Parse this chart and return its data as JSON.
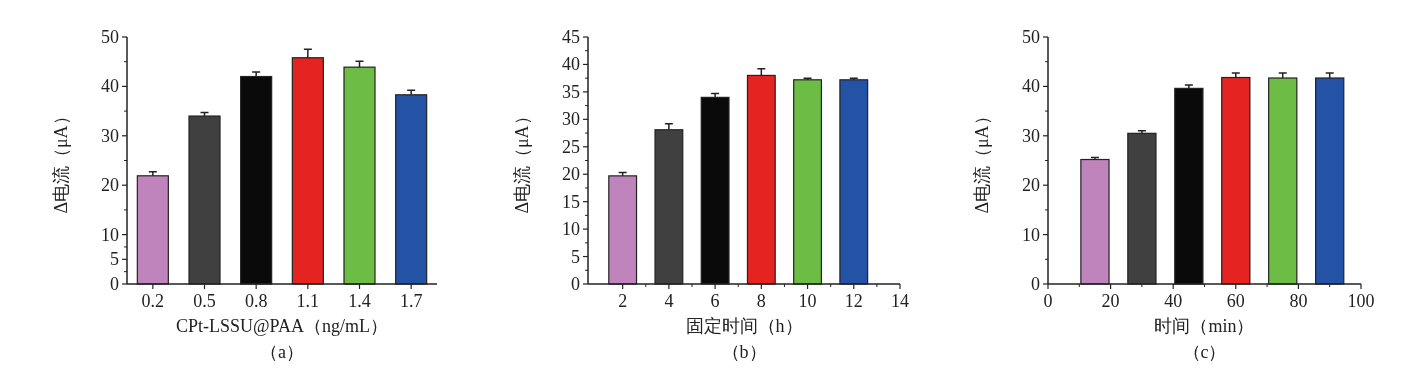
{
  "chart_data": [
    {
      "type": "bar",
      "categories": [
        "0.2",
        "0.5",
        "0.8",
        "1.1",
        "1.4",
        "1.7"
      ],
      "values": [
        21.9,
        34.0,
        42.0,
        45.8,
        43.9,
        38.3
      ],
      "errors": [
        0.8,
        0.7,
        0.9,
        1.7,
        1.2,
        0.9
      ],
      "colors": [
        "#c084bc",
        "#404040",
        "#0a0a0a",
        "#e52421",
        "#6cbc45",
        "#2453a6"
      ],
      "ylim": [
        0,
        50
      ],
      "yticks": [
        0,
        5,
        10,
        20,
        30,
        40,
        50
      ],
      "xlabel": "CPt-LSSU@PAA（ng/mL）",
      "ylabel": "Δ电流（μA）",
      "annotations": [
        "（a）"
      ],
      "grid": false
    },
    {
      "type": "bar",
      "x": [
        2,
        4,
        6,
        8,
        10,
        12
      ],
      "values": [
        19.7,
        28.1,
        34.0,
        38.0,
        37.2,
        37.2
      ],
      "errors": [
        0.6,
        1.1,
        0.7,
        1.2,
        0.3,
        0.3
      ],
      "colors": [
        "#c084bc",
        "#404040",
        "#0a0a0a",
        "#e52421",
        "#6cbc45",
        "#2453a6"
      ],
      "xlim": [
        0.5,
        14
      ],
      "xticks": [
        2,
        4,
        6,
        8,
        10,
        12,
        14
      ],
      "ylim": [
        0,
        45
      ],
      "yticks": [
        0,
        5,
        10,
        15,
        20,
        25,
        30,
        35,
        40,
        45
      ],
      "xlabel": "固定时间（h）",
      "ylabel": "Δ电流（μA）",
      "annotations": [
        "（b）"
      ],
      "grid": false
    },
    {
      "type": "bar",
      "x": [
        15,
        30,
        45,
        60,
        75,
        90
      ],
      "values": [
        25.2,
        30.5,
        39.6,
        41.8,
        41.7,
        41.7
      ],
      "errors": [
        0.4,
        0.5,
        0.7,
        0.9,
        1.0,
        1.0
      ],
      "colors": [
        "#c084bc",
        "#404040",
        "#0a0a0a",
        "#e52421",
        "#6cbc45",
        "#2453a6"
      ],
      "xlim": [
        0,
        100
      ],
      "xticks": [
        0,
        20,
        40,
        60,
        80,
        100
      ],
      "ylim": [
        0,
        50
      ],
      "yticks": [
        0,
        10,
        20,
        30,
        40,
        50
      ],
      "xlabel": "时间（min）",
      "ylabel": "Δ电流（μA）",
      "annotations": [
        "（c）"
      ],
      "grid": false
    }
  ]
}
